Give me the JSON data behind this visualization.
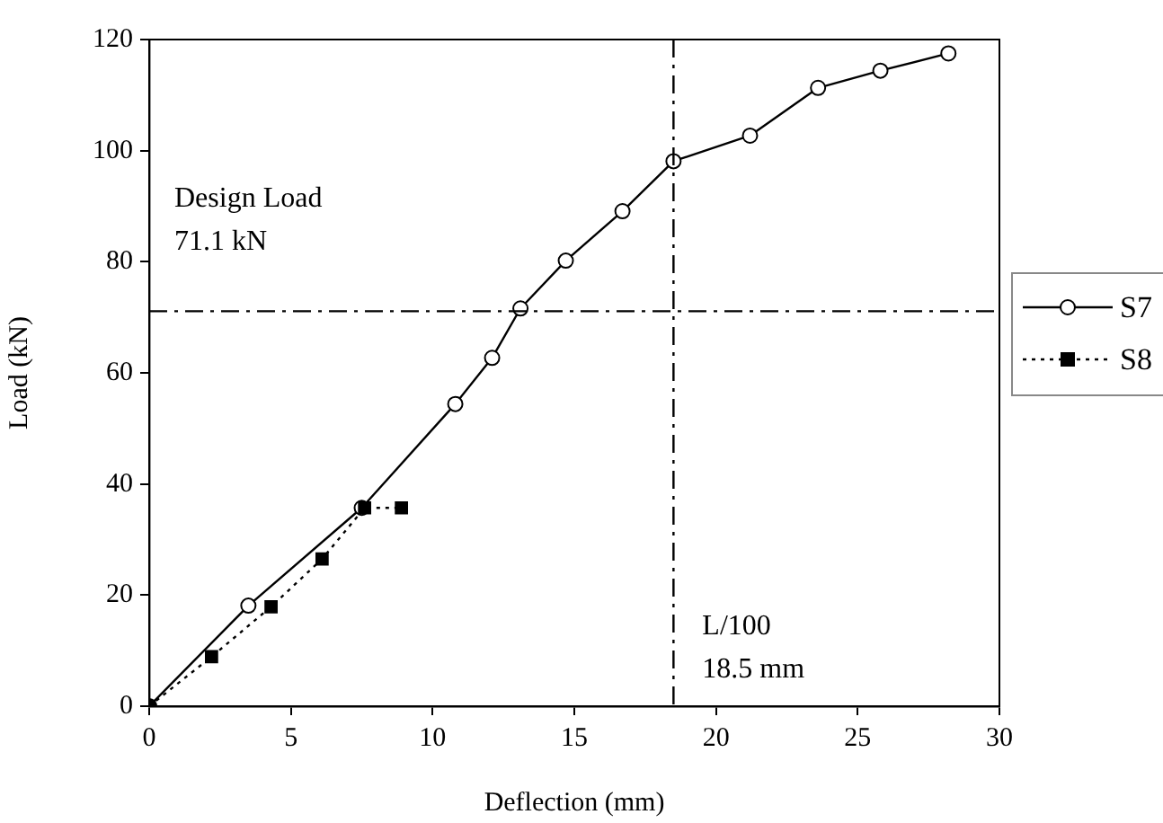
{
  "chart_data": {
    "type": "line",
    "xlabel": "Deflection (mm)",
    "ylabel": "Load (kN)",
    "xlim": [
      0,
      30
    ],
    "xticks": [
      0,
      5,
      10,
      15,
      20,
      25,
      30
    ],
    "ylim": [
      0,
      120
    ],
    "yticks": [
      0,
      20,
      40,
      60,
      80,
      100,
      120
    ],
    "grid": false,
    "legend": "right",
    "series": [
      {
        "name": "S7",
        "color": "#000000",
        "marker": "circle",
        "line_style": "solid",
        "x": [
          0,
          3.5,
          7.5,
          10.8,
          12.1,
          13.1,
          14.7,
          16.7,
          18.5,
          21.2,
          23.6,
          25.8,
          28.2
        ],
        "values": [
          0,
          18.1,
          35.7,
          54.4,
          62.7,
          71.6,
          80.2,
          89.1,
          98.1,
          102.7,
          111.3,
          114.4,
          117.5
        ]
      },
      {
        "name": "S8",
        "color": "#000000",
        "marker": "square",
        "line_style": "dotted",
        "x": [
          0,
          2.2,
          4.3,
          6.1,
          7.6,
          8.9
        ],
        "values": [
          0,
          8.9,
          17.9,
          26.5,
          35.7,
          35.7
        ]
      }
    ],
    "ref_lines": [
      {
        "axis": "y",
        "value": 71.1,
        "label": "Design Load\n71.1 kN",
        "color": "#000000",
        "line_style": "dashdot"
      },
      {
        "axis": "x",
        "value": 18.5,
        "label": "L/100\n18.5 mm",
        "color": "#000000",
        "line_style": "dashdot"
      }
    ]
  }
}
